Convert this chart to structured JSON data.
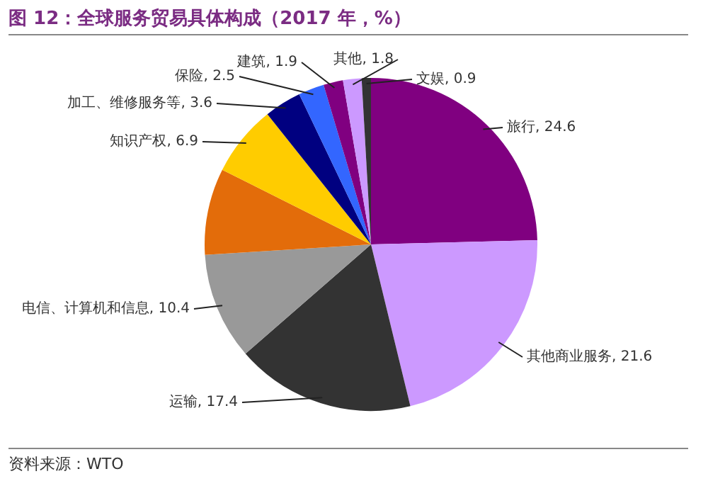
{
  "chart_data": {
    "type": "pie",
    "title": "图 12：全球服务贸易具体构成（2017 年，%）",
    "categories": [
      "旅行",
      "其他商业服务",
      "运输",
      "电信、计算机和信息",
      null,
      "知识产权",
      "加工、维修服务等",
      "保险",
      "建筑",
      "其他",
      "文娱"
    ],
    "values": [
      24.6,
      21.6,
      17.4,
      10.4,
      8.4,
      6.9,
      3.6,
      2.5,
      1.9,
      1.8,
      0.9
    ],
    "value_labels": [
      "24.6",
      "21.6",
      "17.4",
      "10.4",
      null,
      "6.9",
      "3.6",
      "2.5",
      "1.9",
      "1.8",
      "0.9"
    ],
    "colors": [
      "#800080",
      "#cc99ff",
      "#333333",
      "#999999",
      "#e36c0a",
      "#ffcc00",
      "#000080",
      "#3366ff",
      "#800080",
      "#cc99ff",
      "#333333"
    ],
    "legend": false,
    "annotations": [
      "资料来源：WTO"
    ]
  }
}
